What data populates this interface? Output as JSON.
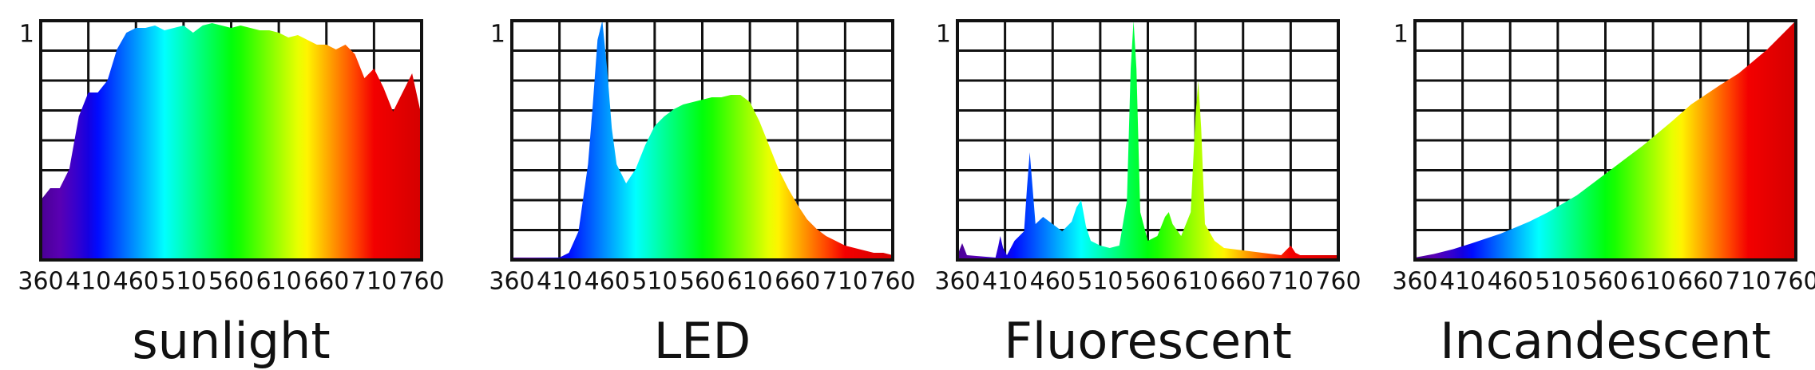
{
  "chart_data": [
    {
      "type": "area",
      "title": "sunlight",
      "x": [
        360,
        370,
        380,
        390,
        400,
        410,
        420,
        430,
        440,
        450,
        460,
        470,
        480,
        490,
        500,
        510,
        520,
        530,
        540,
        550,
        560,
        570,
        580,
        590,
        600,
        610,
        620,
        630,
        640,
        650,
        660,
        670,
        680,
        690,
        700,
        710,
        720,
        730,
        740,
        750,
        760
      ],
      "values": [
        0.25,
        0.3,
        0.3,
        0.38,
        0.6,
        0.7,
        0.7,
        0.75,
        0.88,
        0.95,
        0.97,
        0.97,
        0.98,
        0.96,
        0.97,
        0.98,
        0.95,
        0.98,
        0.99,
        0.98,
        0.97,
        0.98,
        0.97,
        0.96,
        0.96,
        0.95,
        0.93,
        0.94,
        0.92,
        0.9,
        0.9,
        0.88,
        0.9,
        0.86,
        0.76,
        0.8,
        0.72,
        0.62,
        0.7,
        0.78,
        0.6
      ],
      "xlim": [
        360,
        760
      ],
      "ylim": [
        0,
        1
      ],
      "xticks": [
        360,
        410,
        460,
        510,
        560,
        610,
        660,
        710,
        760
      ],
      "yticks": [
        1
      ],
      "grid": true
    },
    {
      "type": "area",
      "title": "LED",
      "x": [
        360,
        400,
        410,
        420,
        430,
        440,
        445,
        450,
        455,
        460,
        465,
        470,
        480,
        490,
        500,
        510,
        520,
        530,
        540,
        550,
        560,
        570,
        580,
        590,
        600,
        610,
        620,
        630,
        640,
        650,
        660,
        670,
        680,
        690,
        700,
        710,
        720,
        730,
        740,
        750,
        760
      ],
      "values": [
        0.01,
        0.01,
        0.01,
        0.03,
        0.12,
        0.4,
        0.65,
        0.92,
        1.0,
        0.8,
        0.55,
        0.4,
        0.32,
        0.38,
        0.48,
        0.56,
        0.6,
        0.63,
        0.65,
        0.66,
        0.67,
        0.68,
        0.68,
        0.69,
        0.69,
        0.66,
        0.58,
        0.48,
        0.38,
        0.3,
        0.23,
        0.17,
        0.13,
        0.1,
        0.08,
        0.06,
        0.05,
        0.04,
        0.03,
        0.03,
        0.02
      ],
      "xlim": [
        360,
        760
      ],
      "ylim": [
        0,
        1
      ],
      "xticks": [
        360,
        410,
        460,
        510,
        560,
        610,
        660,
        710,
        760
      ],
      "yticks": [
        1
      ],
      "grid": true
    },
    {
      "type": "area",
      "title": "Fluorescent",
      "x": [
        360,
        362,
        365,
        370,
        400,
        403,
        405,
        408,
        412,
        420,
        430,
        433,
        436,
        439,
        442,
        450,
        460,
        470,
        480,
        485,
        490,
        495,
        500,
        510,
        520,
        530,
        538,
        542,
        545,
        548,
        552,
        560,
        570,
        578,
        582,
        586,
        595,
        605,
        610,
        613,
        616,
        620,
        630,
        640,
        660,
        680,
        700,
        705,
        710,
        715,
        720,
        740,
        760
      ],
      "values": [
        0.01,
        0.04,
        0.07,
        0.02,
        0.01,
        0.06,
        0.1,
        0.05,
        0.02,
        0.08,
        0.12,
        0.3,
        0.45,
        0.3,
        0.15,
        0.18,
        0.15,
        0.12,
        0.16,
        0.22,
        0.25,
        0.14,
        0.08,
        0.06,
        0.05,
        0.06,
        0.25,
        0.8,
        1.0,
        0.8,
        0.2,
        0.08,
        0.1,
        0.18,
        0.2,
        0.15,
        0.1,
        0.2,
        0.6,
        0.75,
        0.55,
        0.15,
        0.08,
        0.05,
        0.04,
        0.03,
        0.02,
        0.04,
        0.06,
        0.03,
        0.02,
        0.02,
        0.02
      ],
      "xlim": [
        360,
        760
      ],
      "ylim": [
        0,
        1
      ],
      "xticks": [
        360,
        410,
        460,
        510,
        560,
        610,
        660,
        710,
        760
      ],
      "yticks": [
        1
      ],
      "grid": true
    },
    {
      "type": "area",
      "title": "Incandescent",
      "x": [
        360,
        380,
        400,
        420,
        450,
        480,
        500,
        530,
        550,
        580,
        600,
        630,
        650,
        680,
        700,
        730,
        760
      ],
      "values": [
        0.01,
        0.025,
        0.045,
        0.07,
        0.11,
        0.16,
        0.2,
        0.27,
        0.33,
        0.42,
        0.48,
        0.58,
        0.65,
        0.73,
        0.78,
        0.88,
        1.0
      ],
      "xlim": [
        360,
        760
      ],
      "ylim": [
        0,
        1
      ],
      "xticks": [
        360,
        410,
        460,
        510,
        560,
        610,
        660,
        710,
        760
      ],
      "yticks": [
        1
      ],
      "grid": true
    }
  ]
}
